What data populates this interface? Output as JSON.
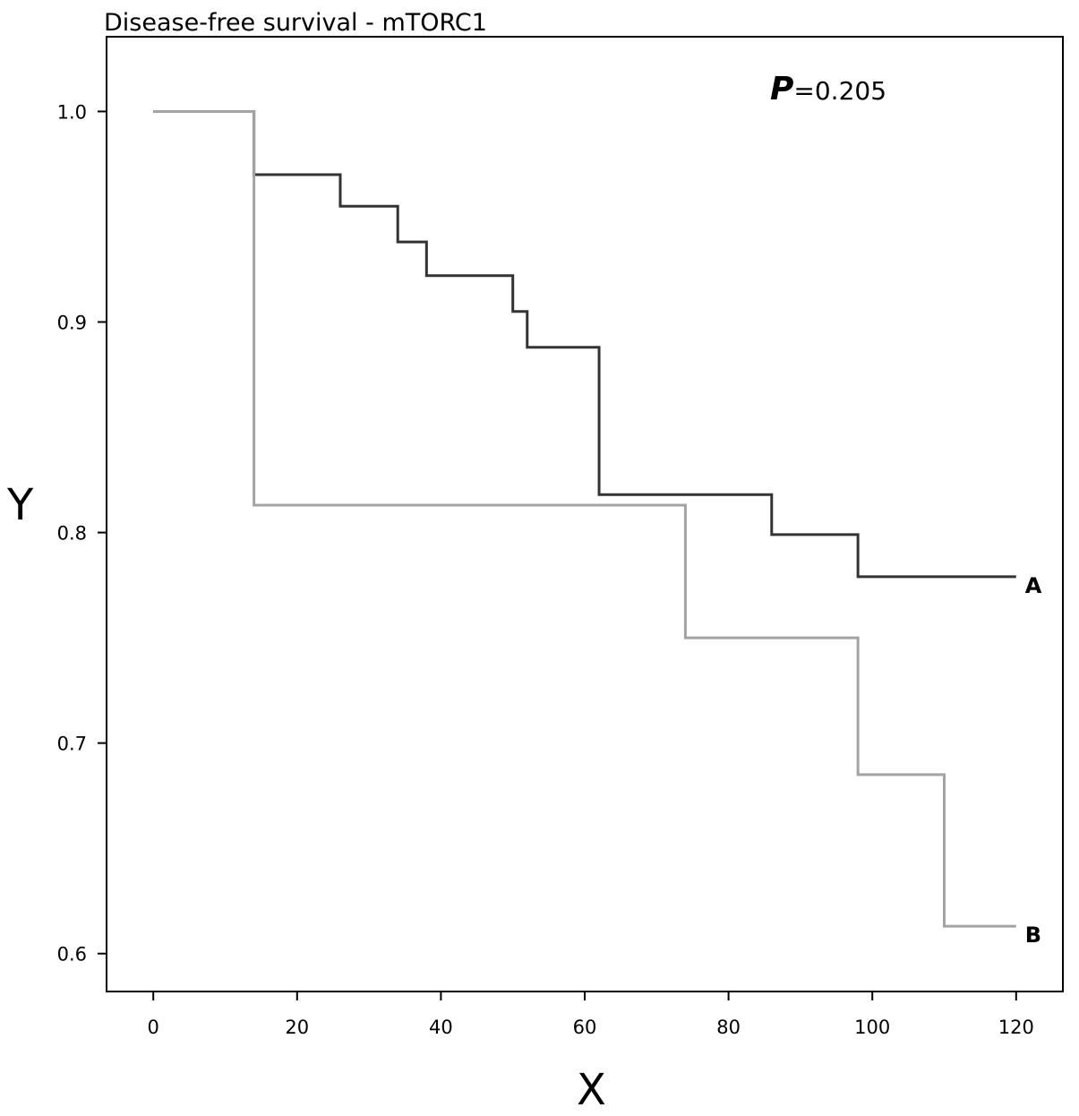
{
  "chart_data": {
    "type": "line",
    "step": true,
    "title": "Disease-free survival - mTORC1",
    "xlabel": "X",
    "ylabel": "Y",
    "xlim": [
      -6.5,
      126.5
    ],
    "ylim": [
      0.582,
      1.0355
    ],
    "xticks": [
      0,
      20,
      40,
      60,
      80,
      100,
      120
    ],
    "xtick_labels": [
      "0",
      "20",
      "40",
      "60",
      "80",
      "100",
      "120"
    ],
    "yticks": [
      0.6,
      0.7,
      0.8,
      0.9,
      1.0
    ],
    "ytick_labels": [
      "0.6",
      "0.7",
      "0.8",
      "0.9",
      "1.0"
    ],
    "grid": false,
    "annotation": {
      "p_label": "P",
      "p_value": "=0.205"
    },
    "series": [
      {
        "name": "A",
        "color": "#333333",
        "x": [
          0,
          14,
          26,
          34,
          38,
          50,
          52,
          62,
          86,
          98,
          120
        ],
        "y": [
          1.0,
          0.97,
          0.955,
          0.938,
          0.922,
          0.905,
          0.888,
          0.818,
          0.799,
          0.779,
          0.779
        ]
      },
      {
        "name": "B",
        "color": "#a3a3a3",
        "x": [
          0,
          14,
          74,
          98,
          110,
          120
        ],
        "y": [
          1.0,
          0.813,
          0.75,
          0.685,
          0.613,
          0.613
        ]
      }
    ]
  }
}
